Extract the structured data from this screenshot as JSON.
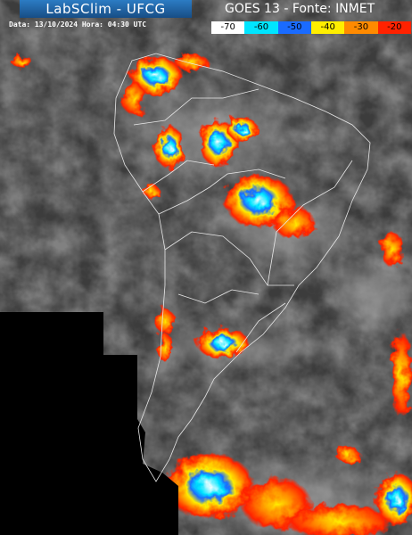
{
  "header": {
    "logo": "LabSClim - UFCG",
    "date_line": "Data: 13/10/2024 Hora: 04:30 UTC",
    "source": "GOES 13 - Fonte: INMET"
  },
  "scale": [
    {
      "label": "-70",
      "color": "#ffffff"
    },
    {
      "label": "-60",
      "color": "#00e5ff"
    },
    {
      "label": "-50",
      "color": "#1a6bff"
    },
    {
      "label": "-40",
      "color": "#ffee00"
    },
    {
      "label": "-30",
      "color": "#ff8a00"
    },
    {
      "label": "-20",
      "color": "#ff2200"
    }
  ]
}
